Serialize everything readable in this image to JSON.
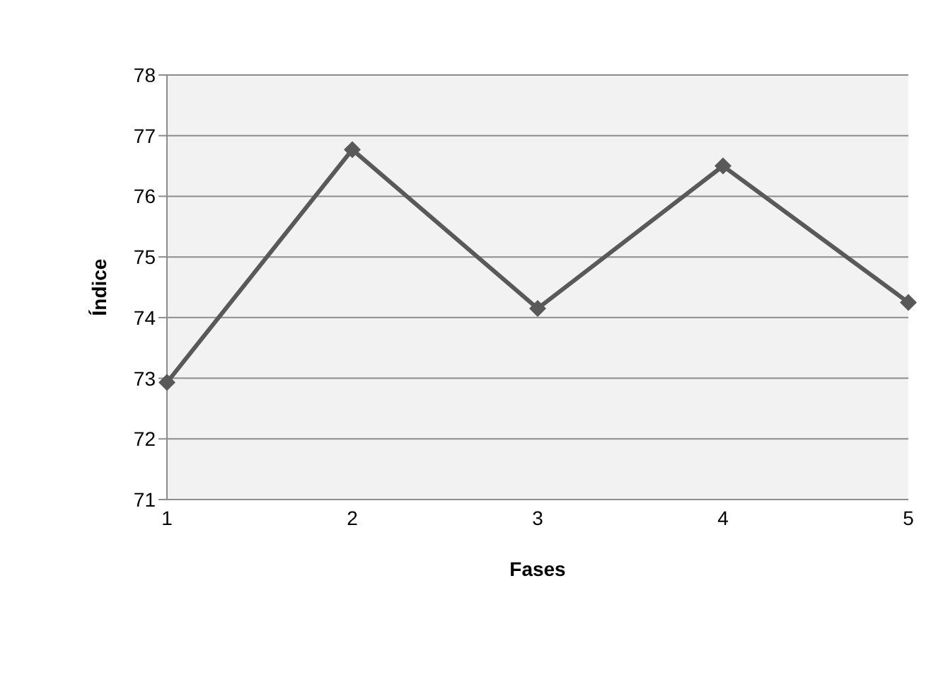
{
  "chart_data": {
    "type": "line",
    "xlabel": "Fases",
    "ylabel": "Índice",
    "categories": [
      "1",
      "2",
      "3",
      "4",
      "5"
    ],
    "series": [
      {
        "color": "#595959",
        "values": [
          72.93,
          76.77,
          74.15,
          76.5,
          74.25
        ]
      }
    ],
    "ylim": [
      71,
      78
    ],
    "yticks": [
      71,
      72,
      73,
      74,
      75,
      76,
      77,
      78
    ],
    "grid": "y",
    "legend": false,
    "marker": "diamond",
    "line_style": "solid"
  }
}
